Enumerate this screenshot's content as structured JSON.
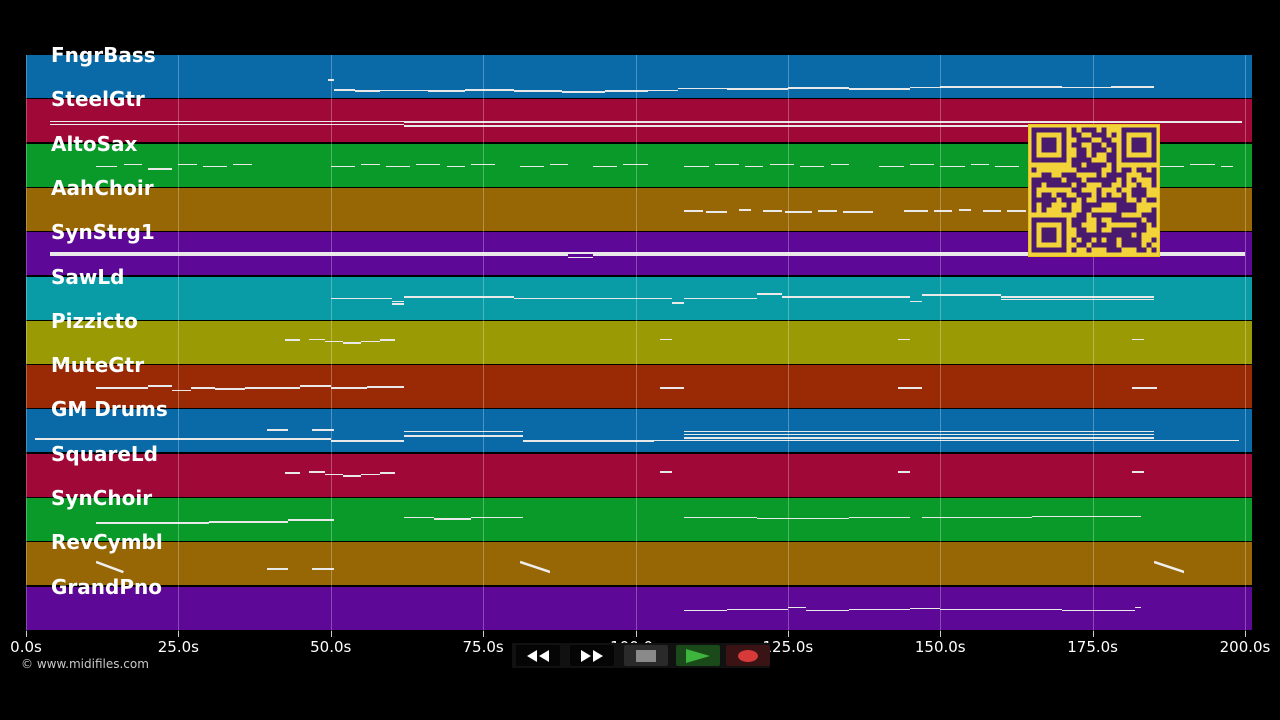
{
  "tracks": [
    {
      "name": "FngrBass",
      "color": "#0a6aa8",
      "notes": [
        [
          49.5,
          50.5,
          0.55
        ],
        [
          50.5,
          54,
          0.77
        ],
        [
          54,
          58,
          0.8
        ],
        [
          58,
          66,
          0.78
        ],
        [
          66,
          72,
          0.8
        ],
        [
          72,
          80,
          0.77
        ],
        [
          80,
          88,
          0.8
        ],
        [
          88,
          95,
          0.82
        ],
        [
          95,
          102,
          0.8
        ],
        [
          102,
          107,
          0.78
        ],
        [
          107,
          115,
          0.74
        ],
        [
          115,
          125,
          0.75
        ],
        [
          125,
          135,
          0.73
        ],
        [
          135,
          145,
          0.75
        ],
        [
          145,
          150,
          0.72
        ],
        [
          150,
          160,
          0.7
        ],
        [
          160,
          170,
          0.7
        ],
        [
          170,
          178,
          0.72
        ],
        [
          178,
          185,
          0.7
        ]
      ]
    },
    {
      "name": "SteelGtr",
      "color": "#a00838",
      "notes": [
        [
          4,
          62,
          0.48
        ],
        [
          4,
          62,
          0.55
        ],
        [
          62,
          80,
          0.5
        ],
        [
          80,
          110,
          0.5
        ],
        [
          110,
          150,
          0.5
        ],
        [
          150,
          181,
          0.5
        ],
        [
          181,
          199.5,
          0.5
        ],
        [
          62,
          181,
          0.58
        ]
      ]
    },
    {
      "name": "AltoSax",
      "color": "#0a9a2a",
      "notes": [
        [
          11.5,
          15,
          0.5
        ],
        [
          16,
          19,
          0.45
        ],
        [
          20,
          24,
          0.55
        ],
        [
          25,
          28,
          0.45
        ],
        [
          29,
          33,
          0.5
        ],
        [
          34,
          37,
          0.45
        ],
        [
          50,
          54,
          0.5
        ],
        [
          55,
          58,
          0.45
        ],
        [
          59,
          63,
          0.5
        ],
        [
          64,
          68,
          0.45
        ],
        [
          69,
          72,
          0.5
        ],
        [
          73,
          77,
          0.45
        ],
        [
          81,
          85,
          0.5
        ],
        [
          86,
          89,
          0.45
        ],
        [
          93,
          97,
          0.5
        ],
        [
          98,
          102,
          0.45
        ],
        [
          108,
          112,
          0.5
        ],
        [
          113,
          117,
          0.45
        ],
        [
          118,
          121,
          0.5
        ],
        [
          122,
          126,
          0.45
        ],
        [
          127,
          131,
          0.5
        ],
        [
          132,
          135,
          0.45
        ],
        [
          140,
          144,
          0.5
        ],
        [
          145,
          149,
          0.45
        ],
        [
          150,
          154,
          0.5
        ],
        [
          155,
          158,
          0.45
        ],
        [
          159,
          163,
          0.5
        ],
        [
          186,
          190,
          0.5
        ],
        [
          191,
          195,
          0.45
        ],
        [
          196,
          198,
          0.5
        ]
      ]
    },
    {
      "name": "AahChoir",
      "color": "#976605",
      "notes": [
        [
          108,
          111,
          0.5
        ],
        [
          111.5,
          115,
          0.52
        ],
        [
          117,
          119,
          0.48
        ],
        [
          121,
          124,
          0.5
        ],
        [
          124.5,
          129,
          0.52
        ],
        [
          130,
          133,
          0.5
        ],
        [
          134,
          139,
          0.52
        ],
        [
          144,
          148,
          0.5
        ],
        [
          149,
          152,
          0.5
        ],
        [
          153,
          155,
          0.48
        ],
        [
          157,
          160,
          0.5
        ],
        [
          161,
          164,
          0.5
        ]
      ]
    },
    {
      "name": "SynStrg1",
      "color": "#5e0897",
      "notes": [
        [
          4,
          89,
          0.5
        ],
        [
          89,
          93,
          0.55
        ],
        [
          93,
          140,
          0.5
        ],
        [
          140,
          200,
          0.5
        ],
        [
          4,
          200,
          0.45
        ]
      ]
    },
    {
      "name": "SawLd",
      "color": "#099ca6",
      "notes": [
        [
          50,
          60,
          0.48
        ],
        [
          60,
          62,
          0.55
        ],
        [
          60,
          62,
          0.6
        ],
        [
          62,
          80,
          0.45
        ],
        [
          80,
          106,
          0.48
        ],
        [
          106,
          108,
          0.58
        ],
        [
          108,
          120,
          0.48
        ],
        [
          120,
          124,
          0.38
        ],
        [
          124,
          145,
          0.45
        ],
        [
          145,
          147,
          0.55
        ],
        [
          147,
          160,
          0.4
        ],
        [
          160,
          185,
          0.45
        ],
        [
          160,
          185,
          0.5
        ]
      ]
    },
    {
      "name": "Pizzicto",
      "color": "#9a9a05",
      "notes": [
        [
          42.5,
          45,
          0.42
        ],
        [
          46.5,
          49,
          0.4
        ],
        [
          49,
          52,
          0.45
        ],
        [
          52,
          55,
          0.48
        ],
        [
          55,
          58,
          0.45
        ],
        [
          58,
          60.5,
          0.42
        ],
        [
          104,
          106,
          0.4
        ],
        [
          143,
          145,
          0.4
        ],
        [
          181.5,
          183.5,
          0.4
        ]
      ]
    },
    {
      "name": "MuteGtr",
      "color": "#9a2a05",
      "notes": [
        [
          11.5,
          20,
          0.5
        ],
        [
          20,
          24,
          0.45
        ],
        [
          24,
          27,
          0.55
        ],
        [
          27,
          31,
          0.5
        ],
        [
          31,
          36,
          0.52
        ],
        [
          36,
          45,
          0.5
        ],
        [
          45,
          50,
          0.45
        ],
        [
          50,
          56,
          0.5
        ],
        [
          56,
          62,
          0.48
        ],
        [
          104,
          108,
          0.5
        ],
        [
          143,
          147,
          0.5
        ],
        [
          181.5,
          185.5,
          0.5
        ]
      ]
    },
    {
      "name": "GM Drums",
      "color": "#0a6aa8",
      "notes": [
        [
          1.5,
          50,
          0.65
        ],
        [
          39.5,
          43,
          0.45
        ],
        [
          47,
          50.5,
          0.45
        ],
        [
          50,
          62,
          0.7
        ],
        [
          62,
          81.5,
          0.48
        ],
        [
          62,
          81.5,
          0.58
        ],
        [
          81.5,
          103,
          0.7
        ],
        [
          103,
          108,
          0.68
        ],
        [
          108,
          185,
          0.48
        ],
        [
          108,
          185,
          0.55
        ],
        [
          108,
          185,
          0.62
        ],
        [
          108,
          199,
          0.68
        ]
      ]
    },
    {
      "name": "SquareLd",
      "color": "#a00838",
      "notes": [
        [
          42.5,
          45,
          0.42
        ],
        [
          46.5,
          49,
          0.4
        ],
        [
          49,
          52,
          0.45
        ],
        [
          52,
          55,
          0.48
        ],
        [
          55,
          58,
          0.45
        ],
        [
          58,
          60.5,
          0.42
        ],
        [
          104,
          106,
          0.4
        ],
        [
          143,
          145,
          0.4
        ],
        [
          181.5,
          183.5,
          0.4
        ]
      ]
    },
    {
      "name": "SynChoir",
      "color": "#0a9a2a",
      "notes": [
        [
          11.5,
          30,
          0.55
        ],
        [
          30,
          43,
          0.52
        ],
        [
          43,
          50.5,
          0.48
        ],
        [
          62,
          67,
          0.42
        ],
        [
          67,
          73,
          0.45
        ],
        [
          73,
          81.5,
          0.42
        ],
        [
          108,
          120,
          0.42
        ],
        [
          120,
          135,
          0.44
        ],
        [
          135,
          145,
          0.42
        ],
        [
          147,
          165,
          0.42
        ],
        [
          165,
          183,
          0.4
        ]
      ]
    },
    {
      "name": "RevCymbl",
      "color": "#976605",
      "notes": [
        [
          39.5,
          43,
          0.58
        ],
        [
          47,
          50.5,
          0.58
        ]
      ],
      "swooshes": [
        [
          11.5,
          16,
          0.45,
          0.68
        ],
        [
          81,
          86,
          0.45,
          0.68
        ],
        [
          185,
          190,
          0.45,
          0.68
        ]
      ]
    },
    {
      "name": "GrandPno",
      "color": "#5e0897",
      "notes": [
        [
          108,
          115,
          0.52
        ],
        [
          115,
          125,
          0.5
        ],
        [
          125,
          128,
          0.45
        ],
        [
          128,
          135,
          0.52
        ],
        [
          135,
          145,
          0.5
        ],
        [
          145,
          150,
          0.47
        ],
        [
          150,
          160,
          0.5
        ],
        [
          160,
          170,
          0.5
        ],
        [
          170,
          182,
          0.52
        ],
        [
          182,
          183,
          0.45
        ]
      ]
    }
  ],
  "time_axis": {
    "max_seconds": 200,
    "ticks": [
      "0.0s",
      "25.0s",
      "50.0s",
      "75.0s",
      "100.0s",
      "125.0s",
      "150.0s",
      "175.0s",
      "200.0s"
    ]
  },
  "copyright": "© www.midifiles.com",
  "transport": {
    "rewind": {
      "icon": "rewind-icon",
      "color": "#ffffff"
    },
    "fast_forward": {
      "icon": "fast-forward-icon",
      "color": "#ffffff"
    },
    "stop": {
      "icon": "stop-icon",
      "color": "#8a8a8a"
    },
    "play": {
      "icon": "play-icon",
      "color": "#3db53d"
    },
    "record": {
      "icon": "record-icon",
      "color": "#d83a3a"
    }
  },
  "qr": {
    "icon": "qr-code-icon",
    "fg": "#4a1a6e",
    "bg": "#f2d43a"
  }
}
